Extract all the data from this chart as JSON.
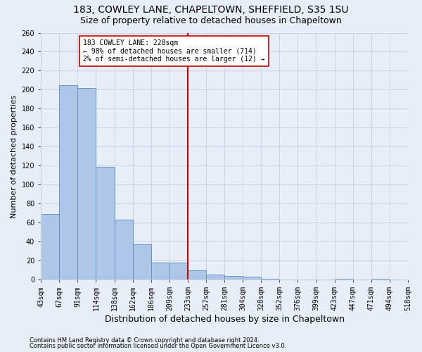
{
  "title1": "183, COWLEY LANE, CHAPELTOWN, SHEFFIELD, S35 1SU",
  "title2": "Size of property relative to detached houses in Chapeltown",
  "xlabel": "Distribution of detached houses by size in Chapeltown",
  "ylabel": "Number of detached properties",
  "footer1": "Contains HM Land Registry data © Crown copyright and database right 2024.",
  "footer2": "Contains public sector information licensed under the Open Government Licence v3.0.",
  "bin_labels": [
    "43sqm",
    "67sqm",
    "91sqm",
    "114sqm",
    "138sqm",
    "162sqm",
    "186sqm",
    "209sqm",
    "233sqm",
    "257sqm",
    "281sqm",
    "304sqm",
    "328sqm",
    "352sqm",
    "376sqm",
    "399sqm",
    "423sqm",
    "447sqm",
    "471sqm",
    "494sqm",
    "518sqm"
  ],
  "bar_values": [
    69,
    205,
    202,
    119,
    63,
    37,
    18,
    18,
    10,
    5,
    4,
    3,
    1,
    0,
    0,
    0,
    1,
    0,
    1,
    0
  ],
  "bar_color": "#aec6e8",
  "bar_edge_color": "#5a8fc0",
  "background_color": "#e8eef7",
  "grid_color": "#c8d0e0",
  "vline_x_index": 8.0,
  "vline_color": "#cc0000",
  "annotation_title": "183 COWLEY LANE: 228sqm",
  "annotation_line1": "← 98% of detached houses are smaller (714)",
  "annotation_line2": "2% of semi-detached houses are larger (12) →",
  "annotation_box_color": "#ffffff",
  "annotation_box_edge": "#cc0000",
  "ylim": [
    0,
    260
  ],
  "yticks": [
    0,
    20,
    40,
    60,
    80,
    100,
    120,
    140,
    160,
    180,
    200,
    220,
    240,
    260
  ],
  "title1_fontsize": 10,
  "title2_fontsize": 9,
  "xlabel_fontsize": 9,
  "ylabel_fontsize": 8,
  "tick_fontsize": 7,
  "footer_fontsize": 6,
  "annotation_fontsize": 7
}
